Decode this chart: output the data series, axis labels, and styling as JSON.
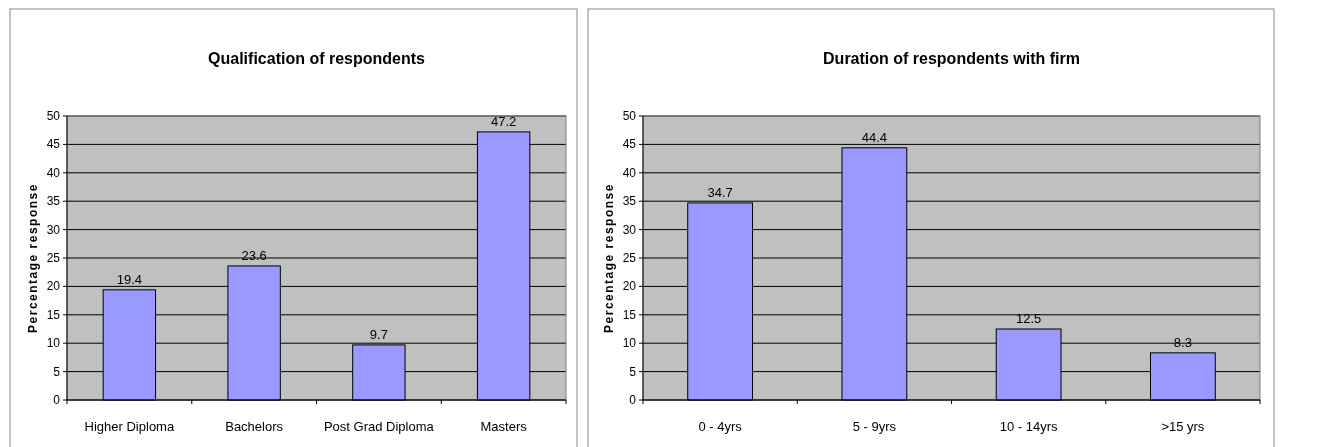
{
  "chart_data": [
    {
      "type": "bar",
      "title": "Qualification of respondents",
      "ylabel": "Percentage response",
      "categories": [
        "Higher Diploma",
        "Bachelors",
        "Post Grad Diploma",
        "Masters"
      ],
      "values": [
        19.4,
        23.6,
        9.7,
        47.2
      ],
      "color": "#9999ff",
      "ylim": [
        0,
        50
      ],
      "yticks": [
        0,
        5,
        10,
        15,
        20,
        25,
        30,
        35,
        40,
        45,
        50
      ],
      "grid": "y",
      "data_labels": true
    },
    {
      "type": "bar",
      "title": "Duration of respondents with firm",
      "ylabel": "Percentage response",
      "categories": [
        "0 - 4yrs",
        "5 - 9yrs",
        "10 - 14yrs",
        ">15 yrs"
      ],
      "values": [
        34.7,
        44.4,
        12.5,
        8.3
      ],
      "color": "#9999ff",
      "ylim": [
        0,
        50
      ],
      "yticks": [
        0,
        5,
        10,
        15,
        20,
        25,
        30,
        35,
        40,
        45,
        50
      ],
      "grid": "y",
      "data_labels": true
    }
  ]
}
